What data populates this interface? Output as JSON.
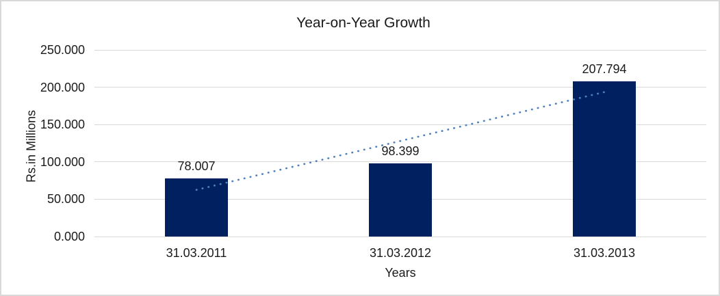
{
  "chart_data": {
    "type": "bar",
    "title": "Year-on-Year Growth",
    "xlabel": "Years",
    "ylabel": "Rs.in Millions",
    "categories": [
      "31.03.2011",
      "31.03.2012",
      "31.03.2013"
    ],
    "values": [
      78.007,
      98.399,
      207.794
    ],
    "data_labels": [
      "78.007",
      "98.399",
      "207.794"
    ],
    "ylim": [
      0,
      250
    ],
    "yticks": {
      "values": [
        0,
        50,
        100,
        150,
        200,
        250
      ],
      "labels": [
        "0.000",
        "50.000",
        "100.000",
        "150.000",
        "200.000",
        "250.000"
      ]
    },
    "grid": true,
    "legend": "none",
    "trendline": {
      "style": "dotted",
      "start_value": 62.5,
      "end_value": 193.5
    },
    "colors": {
      "bar": "#002060",
      "trendline": "#4F81BD",
      "gridline": "#d9d9d9",
      "text": "#1a1a1a",
      "background": "#ffffff",
      "border": "#d9d9d9"
    }
  }
}
